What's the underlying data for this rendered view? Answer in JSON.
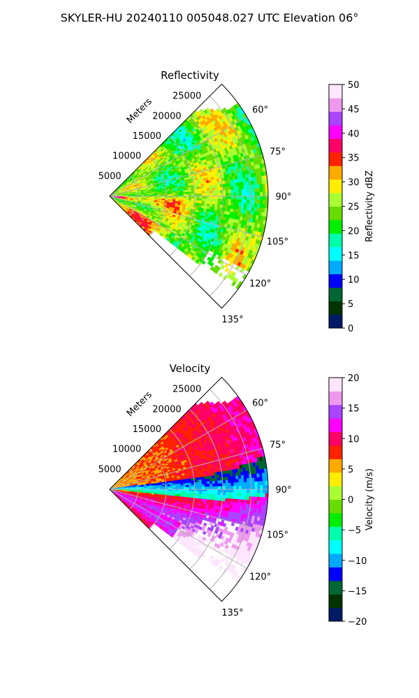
{
  "figure": {
    "title": "SKYLER-HU  20240110  005048.027 UTC Elevation 06°"
  },
  "chart_data": [
    {
      "type": "heatmap",
      "title": "Reflectivity",
      "range_label": "Meters",
      "range_ticks": [
        "5000",
        "10000",
        "15000",
        "20000",
        "25000"
      ],
      "range_tick_values": [
        5000,
        10000,
        15000,
        20000,
        25000
      ],
      "range_max": 28000,
      "azimuth_ticks": [
        "60°",
        "75°",
        "90°",
        "105°",
        "120°",
        "135°"
      ],
      "azimuth_tick_values": [
        60,
        75,
        90,
        105,
        120,
        135
      ],
      "azimuth_range": [
        45,
        135
      ],
      "grid": true,
      "colorbar": {
        "label": "Reflectivity dBZ",
        "min": 0,
        "max": 50,
        "ticks": [
          "0",
          "5",
          "10",
          "15",
          "20",
          "25",
          "30",
          "35",
          "40",
          "45",
          "50"
        ],
        "tick_values": [
          0,
          5,
          10,
          15,
          20,
          25,
          30,
          35,
          40,
          45,
          50
        ],
        "colors": [
          "#001a66",
          "#003300",
          "#006633",
          "#0000ff",
          "#00aaff",
          "#00ffff",
          "#00ffaa",
          "#00ee00",
          "#66dd00",
          "#aaff33",
          "#ffee00",
          "#ffaa00",
          "#ff2200",
          "#ff0066",
          "#ff00ff",
          "#aa44ff",
          "#ee99ee",
          "#ffe6ff"
        ]
      }
    },
    {
      "type": "heatmap",
      "title": "Velocity",
      "range_label": "Meters",
      "range_ticks": [
        "5000",
        "10000",
        "15000",
        "20000",
        "25000"
      ],
      "range_tick_values": [
        5000,
        10000,
        15000,
        20000,
        25000
      ],
      "range_max": 28000,
      "azimuth_ticks": [
        "60°",
        "75°",
        "90°",
        "105°",
        "120°",
        "135°"
      ],
      "azimuth_tick_values": [
        60,
        75,
        90,
        105,
        120,
        135
      ],
      "azimuth_range": [
        45,
        135
      ],
      "grid": true,
      "colorbar": {
        "label": "Velocity (m/s)",
        "min": -20,
        "max": 20,
        "ticks": [
          "−20",
          "−15",
          "−10",
          "−5",
          "0",
          "5",
          "10",
          "15",
          "20"
        ],
        "tick_values": [
          -20,
          -15,
          -10,
          -5,
          0,
          5,
          10,
          15,
          20
        ],
        "colors": [
          "#001a66",
          "#003300",
          "#006633",
          "#0000ff",
          "#00aaff",
          "#00ffff",
          "#00ffaa",
          "#00ee00",
          "#66dd00",
          "#aaff33",
          "#ffee00",
          "#ffaa00",
          "#ff2200",
          "#ff0066",
          "#ff00ff",
          "#aa44ff",
          "#ee99ee",
          "#ffe6ff"
        ]
      }
    }
  ]
}
